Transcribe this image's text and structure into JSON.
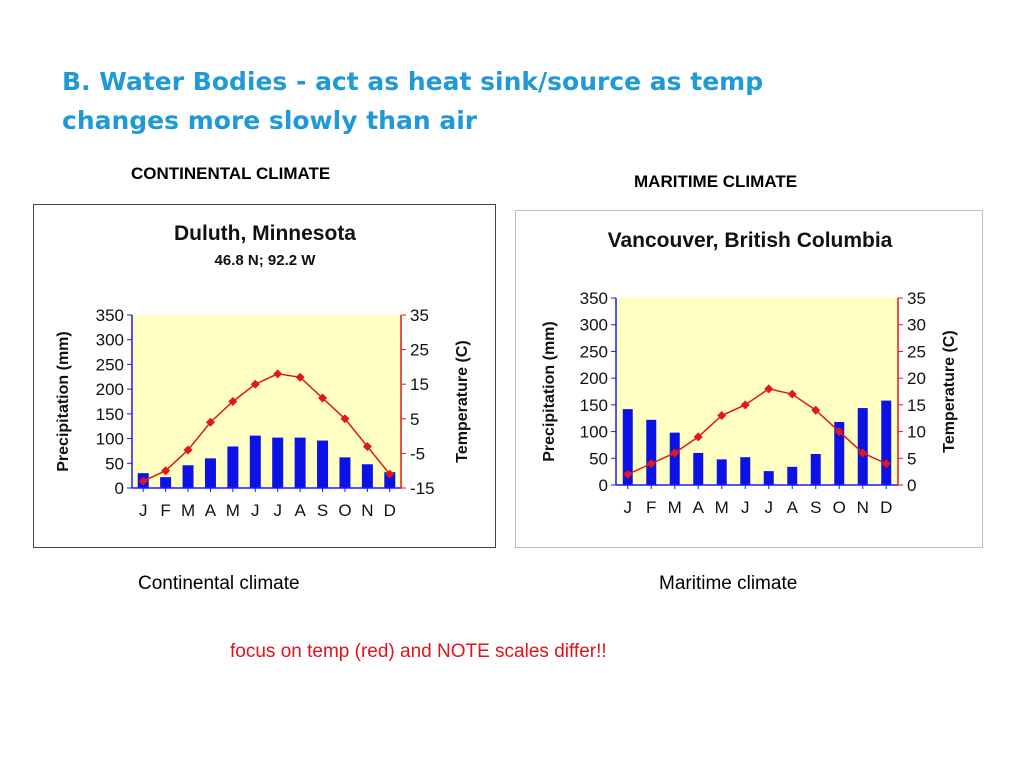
{
  "slide": {
    "title": "B. Water Bodies - act as heat sink/source as temp changes more slowly than air",
    "note": "focus on temp (red) and NOTE scales differ!!"
  },
  "left": {
    "heading": "CONTINENTAL CLIMATE",
    "caption": "Continental climate"
  },
  "right": {
    "heading": "MARITIME CLIMATE",
    "caption": "Maritime climate"
  },
  "colors": {
    "title": "#1f9ad6",
    "bars": "#0c12e6",
    "temp_line": "#e11818",
    "plot_bg": "#ffffc4",
    "axis": "#1a1aff",
    "note": "#e0121c"
  },
  "chart_data": [
    {
      "type": "bar",
      "title": "Duluth, Minnesota",
      "subtitle": "46.8 N; 92.2 W",
      "categories": [
        "J",
        "F",
        "M",
        "A",
        "M",
        "J",
        "J",
        "A",
        "S",
        "O",
        "N",
        "D"
      ],
      "ylabel": "Precipitation (mm)",
      "ylim": [
        0,
        350
      ],
      "yticks": [
        0,
        50,
        100,
        150,
        200,
        250,
        300,
        350
      ],
      "y2label": "Temperature (C)",
      "y2lim": [
        -15,
        35
      ],
      "y2ticks": [
        -15,
        -5,
        5,
        15,
        25,
        35
      ],
      "grid": false,
      "series": [
        {
          "type": "bar",
          "axis": "left",
          "values": [
            30,
            22,
            46,
            60,
            84,
            106,
            102,
            102,
            96,
            62,
            48,
            32
          ]
        },
        {
          "type": "line",
          "axis": "right",
          "values": [
            -13,
            -10,
            -4,
            4,
            10,
            15,
            18,
            17,
            11,
            5,
            -3,
            -11
          ]
        }
      ]
    },
    {
      "type": "bar",
      "title": "Vancouver, British Columbia",
      "categories": [
        "J",
        "F",
        "M",
        "A",
        "M",
        "J",
        "J",
        "A",
        "S",
        "O",
        "N",
        "D"
      ],
      "ylabel": "Precipitation (mm)",
      "ylim": [
        0,
        350
      ],
      "yticks": [
        0,
        50,
        100,
        150,
        200,
        250,
        300,
        350
      ],
      "y2label": "Temperature (C)",
      "y2lim": [
        0,
        35
      ],
      "y2ticks": [
        0,
        5,
        10,
        15,
        20,
        25,
        30,
        35
      ],
      "grid": false,
      "series": [
        {
          "type": "bar",
          "axis": "left",
          "values": [
            142,
            122,
            98,
            60,
            48,
            52,
            26,
            34,
            58,
            118,
            144,
            158
          ]
        },
        {
          "type": "line",
          "axis": "right",
          "values": [
            2,
            4,
            6,
            9,
            13,
            15,
            18,
            17,
            14,
            10,
            6,
            4
          ]
        }
      ]
    }
  ]
}
